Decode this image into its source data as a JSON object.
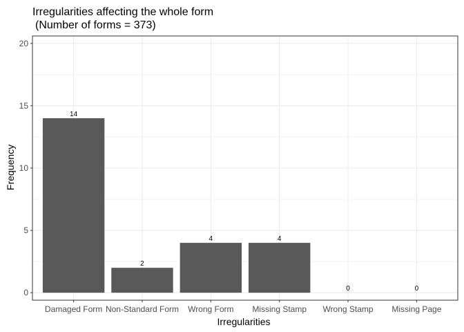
{
  "chart_data": {
    "type": "bar",
    "title": "Irregularities affecting the whole form",
    "subtitle": "(Number of forms = 373)",
    "xlabel": "Irregularities",
    "ylabel": "Frequency",
    "categories": [
      "Damaged Form",
      "Non-Standard Form",
      "Wrong Form",
      "Missing Stamp",
      "Wrong Stamp",
      "Missing Page"
    ],
    "values": [
      14,
      2,
      4,
      4,
      0,
      0
    ],
    "data_labels": [
      "14",
      "2",
      "4",
      "4",
      "0",
      "0"
    ],
    "ylim": [
      -0.6,
      20.6
    ],
    "yticks": [
      0,
      5,
      10,
      15,
      20
    ],
    "ytick_labels": [
      "0",
      "5",
      "10",
      "15",
      "20"
    ],
    "grid": true,
    "bar_color": "#595959",
    "grid_color": "#ebebeb",
    "panel_border_color": "#333333"
  }
}
